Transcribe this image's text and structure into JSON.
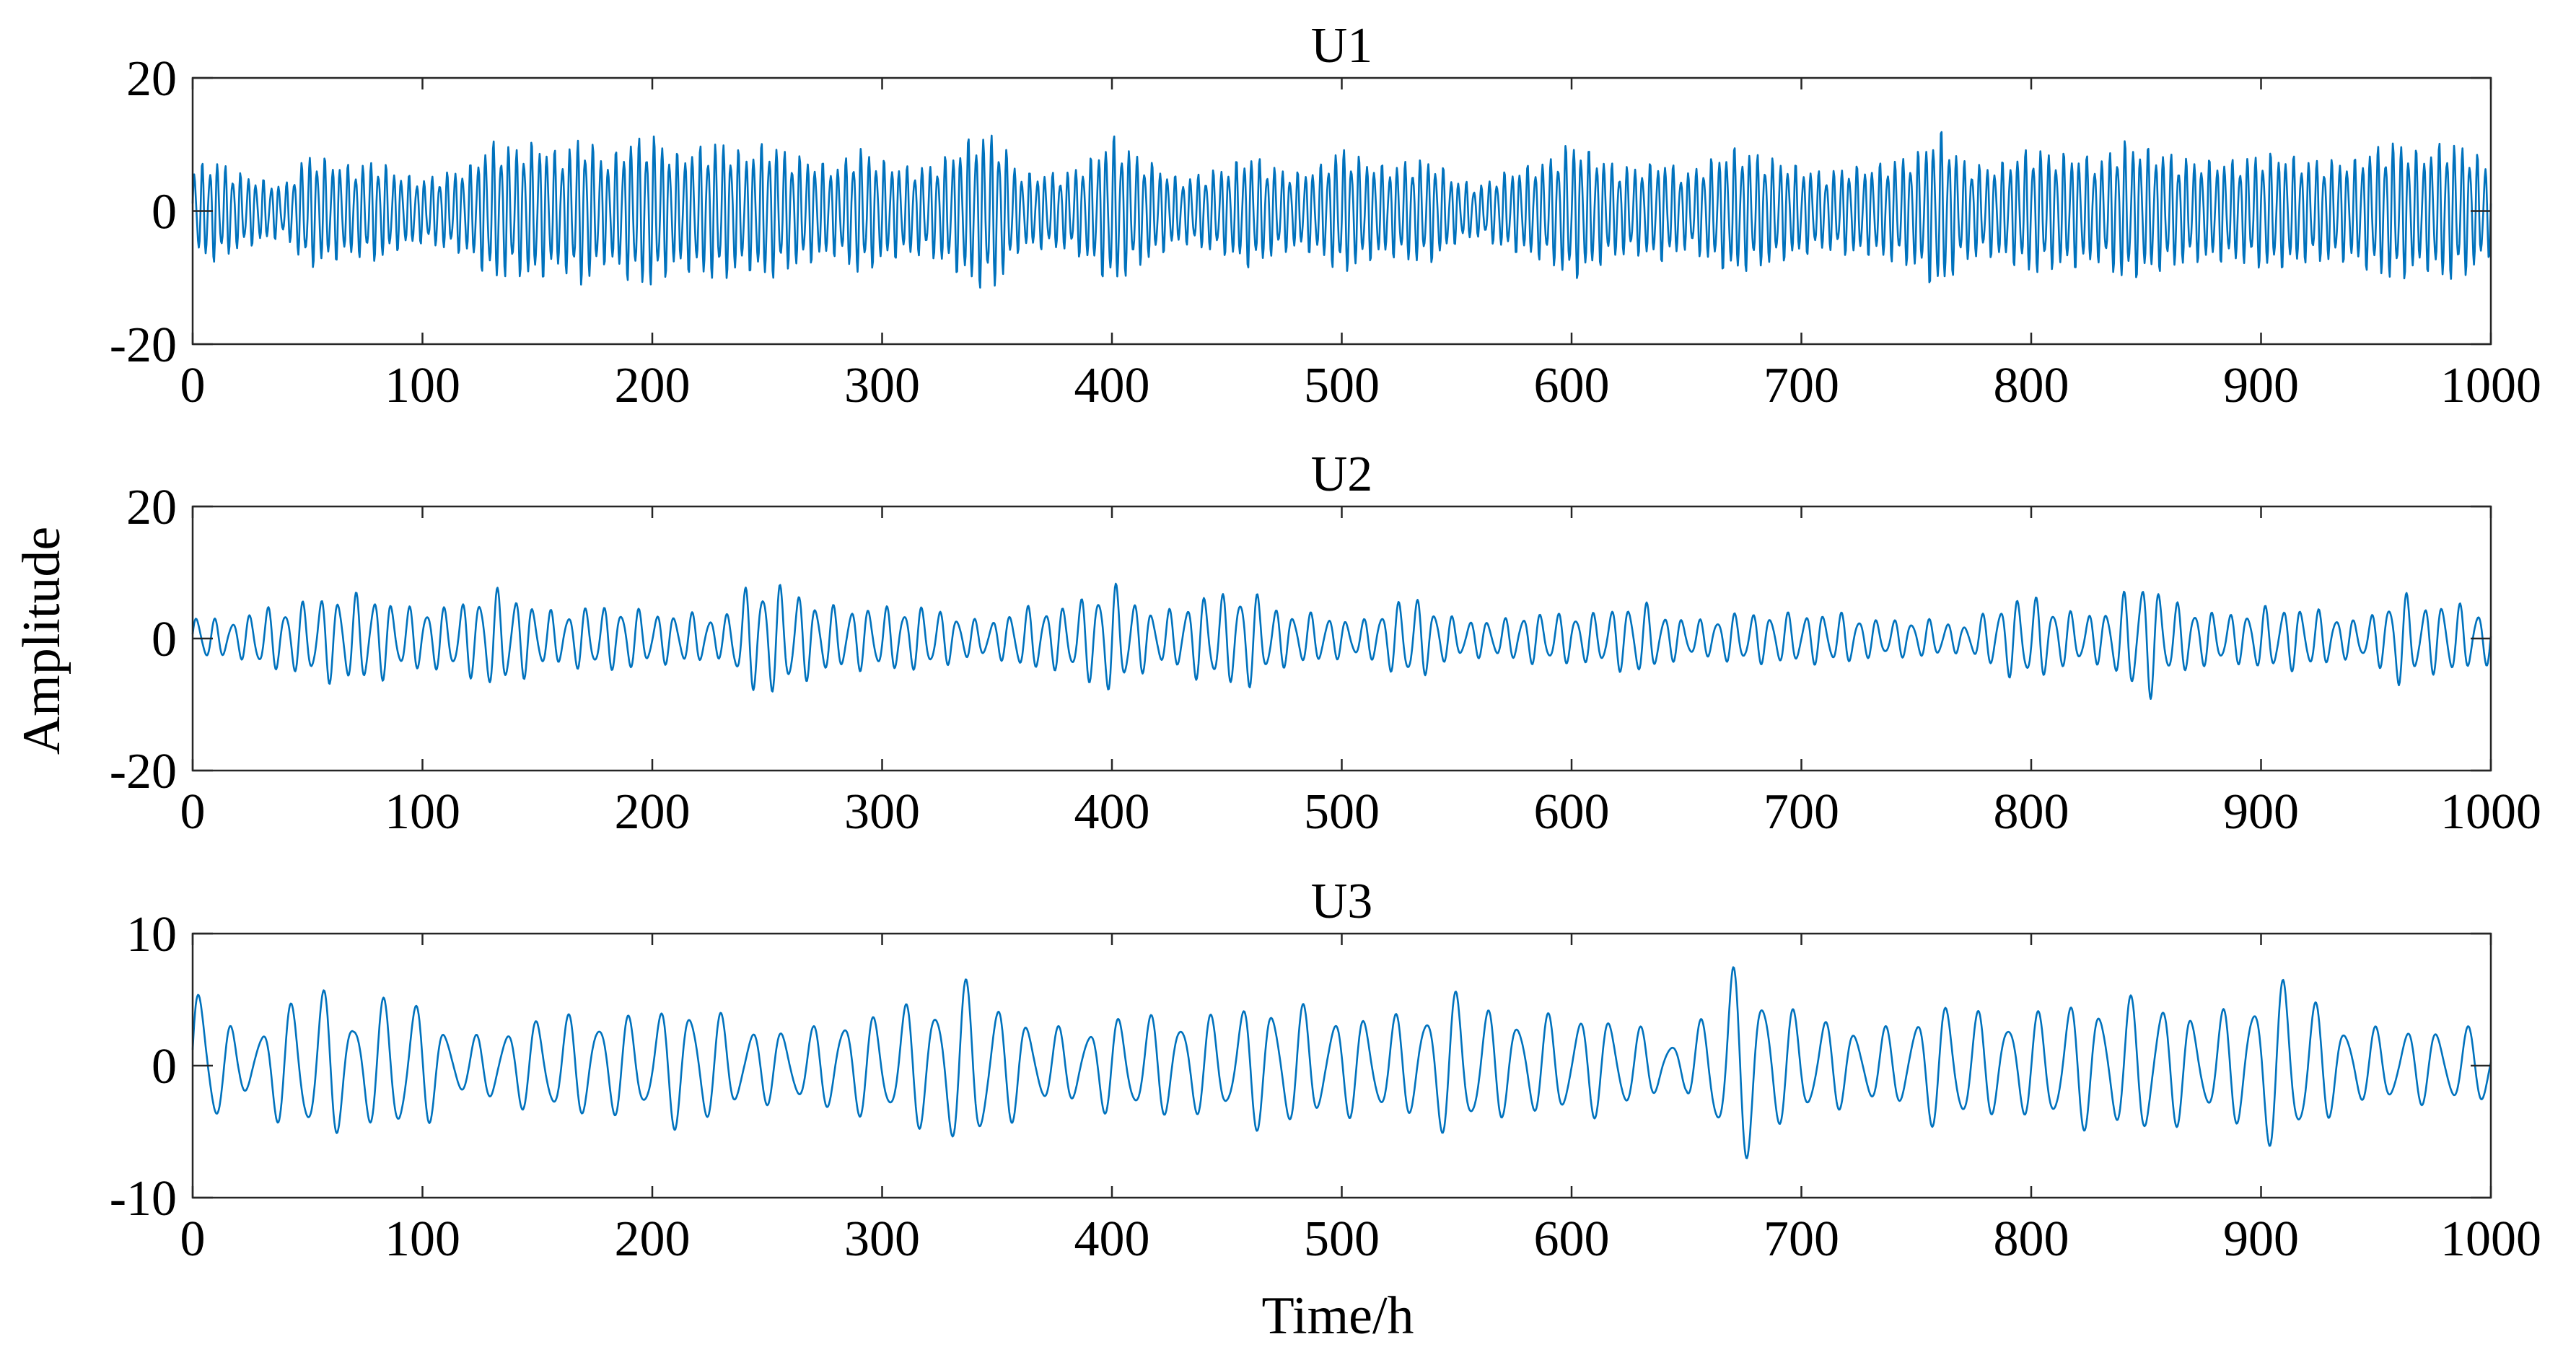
{
  "chart_data": {
    "type": "line",
    "xlabel": "Time/h",
    "ylabel": "Amplitude",
    "line_color": "#0072BD",
    "grid": false,
    "panels": [
      {
        "title": "U1",
        "xlim": [
          0,
          1000
        ],
        "ylim": [
          -20,
          20
        ],
        "xticks": [
          "0",
          "100",
          "200",
          "300",
          "400",
          "500",
          "600",
          "700",
          "800",
          "900",
          "1000"
        ],
        "yticks": [
          "20",
          "0",
          "-20"
        ],
        "x": [
          0,
          10,
          20,
          30,
          40,
          50,
          60,
          70,
          80,
          90,
          100,
          110,
          120,
          130,
          140,
          150,
          160,
          170,
          180,
          190,
          200,
          210,
          220,
          230,
          240,
          250,
          260,
          270,
          280,
          290,
          300,
          310,
          320,
          330,
          340,
          350,
          360,
          370,
          380,
          390,
          400,
          410,
          420,
          430,
          440,
          450,
          460,
          470,
          480,
          490,
          500,
          510,
          520,
          530,
          540,
          550,
          560,
          570,
          580,
          590,
          600,
          610,
          620,
          630,
          640,
          650,
          660,
          670,
          680,
          690,
          700,
          710,
          720,
          730,
          740,
          750,
          760,
          770,
          780,
          790,
          800,
          810,
          820,
          830,
          840,
          850,
          860,
          870,
          880,
          890,
          900,
          910,
          920,
          930,
          940,
          950,
          960,
          970,
          980,
          990,
          1000
        ],
        "envelope": [
          7,
          8,
          6,
          5,
          4,
          9,
          8,
          7,
          8,
          6,
          5,
          6,
          7,
          11,
          10,
          11,
          9,
          12,
          8,
          11,
          12,
          9,
          10,
          11,
          9,
          11,
          9,
          8,
          7,
          10,
          8,
          7,
          7,
          9,
          12,
          12,
          6,
          6,
          6,
          8,
          12,
          9,
          7,
          5,
          6,
          7,
          9,
          7,
          6,
          7,
          10,
          8,
          7,
          8,
          8,
          5,
          4,
          6,
          7,
          8,
          11,
          9,
          7,
          7,
          8,
          6,
          8,
          10,
          9,
          8,
          7,
          6,
          7,
          7,
          8,
          9,
          13,
          8,
          7,
          8,
          10,
          9,
          9,
          8,
          11,
          10,
          9,
          8,
          8,
          8,
          9,
          9,
          8,
          8,
          8,
          10,
          11,
          9,
          11,
          10,
          7
        ]
      },
      {
        "title": "U2",
        "xlim": [
          0,
          1000
        ],
        "ylim": [
          -20,
          20
        ],
        "xticks": [
          "0",
          "100",
          "200",
          "300",
          "400",
          "500",
          "600",
          "700",
          "800",
          "900",
          "1000"
        ],
        "yticks": [
          "20",
          "0",
          "-20"
        ],
        "x": [
          0,
          10,
          20,
          30,
          40,
          50,
          60,
          70,
          80,
          90,
          100,
          110,
          120,
          130,
          140,
          150,
          160,
          170,
          180,
          190,
          200,
          210,
          220,
          230,
          240,
          250,
          260,
          270,
          280,
          290,
          300,
          310,
          320,
          330,
          340,
          350,
          360,
          370,
          380,
          390,
          400,
          410,
          420,
          430,
          440,
          450,
          460,
          470,
          480,
          490,
          500,
          510,
          520,
          530,
          540,
          550,
          560,
          570,
          580,
          590,
          600,
          610,
          620,
          630,
          640,
          650,
          660,
          670,
          680,
          690,
          700,
          710,
          720,
          730,
          740,
          750,
          760,
          770,
          780,
          790,
          800,
          810,
          820,
          830,
          840,
          850,
          860,
          870,
          880,
          890,
          900,
          910,
          920,
          930,
          940,
          950,
          960,
          970,
          980,
          990,
          1000
        ],
        "envelope": [
          4,
          3,
          3,
          5,
          5,
          6,
          7,
          7,
          7,
          5,
          5,
          5,
          6,
          8,
          7,
          5,
          4,
          5,
          5,
          5,
          4,
          4,
          4,
          3,
          8,
          9,
          8,
          6,
          5,
          5,
          5,
          5,
          5,
          4,
          3,
          3,
          5,
          5,
          5,
          7,
          9,
          6,
          4,
          5,
          7,
          7,
          8,
          5,
          4,
          4,
          3,
          3,
          5,
          7,
          5,
          3,
          3,
          3,
          4,
          4,
          4,
          4,
          5,
          6,
          4,
          3,
          3,
          4,
          4,
          4,
          4,
          4,
          4,
          3,
          3,
          3,
          3,
          2,
          4,
          6,
          7,
          5,
          4,
          4,
          7,
          10,
          6,
          5,
          4,
          4,
          5,
          5,
          5,
          4,
          3,
          4,
          8,
          5,
          6,
          5,
          4
        ]
      },
      {
        "title": "U3",
        "xlim": [
          0,
          1000
        ],
        "ylim": [
          -10,
          10
        ],
        "xticks": [
          "0",
          "100",
          "200",
          "300",
          "400",
          "500",
          "600",
          "700",
          "800",
          "900",
          "1000"
        ],
        "yticks": [
          "10",
          "0",
          "-10"
        ],
        "x": [
          0,
          10,
          20,
          30,
          40,
          50,
          60,
          70,
          80,
          90,
          100,
          110,
          120,
          130,
          140,
          150,
          160,
          170,
          180,
          190,
          200,
          210,
          220,
          230,
          240,
          250,
          260,
          270,
          280,
          290,
          300,
          310,
          320,
          330,
          340,
          350,
          360,
          370,
          380,
          390,
          400,
          410,
          420,
          430,
          440,
          450,
          460,
          470,
          480,
          490,
          500,
          510,
          520,
          530,
          540,
          550,
          560,
          570,
          580,
          590,
          600,
          610,
          620,
          630,
          640,
          650,
          660,
          670,
          680,
          690,
          700,
          710,
          720,
          730,
          740,
          750,
          760,
          770,
          780,
          790,
          800,
          810,
          820,
          830,
          840,
          850,
          860,
          870,
          880,
          890,
          900,
          910,
          920,
          930,
          940,
          950,
          960,
          970,
          980,
          990,
          1000
        ],
        "envelope": [
          7.5,
          5,
          2,
          3,
          5,
          6,
          6,
          4,
          5,
          6,
          5,
          3,
          2,
          3,
          3,
          4,
          4,
          4,
          4,
          4,
          4,
          5,
          5,
          4,
          3,
          3,
          3,
          3,
          4,
          4,
          4,
          5,
          5,
          6,
          7,
          5,
          4,
          3,
          3,
          3,
          4,
          4,
          4,
          4,
          4,
          4,
          5,
          5,
          5,
          4,
          4,
          4,
          4,
          4,
          5,
          6,
          5,
          4,
          4,
          4,
          4,
          4,
          4,
          3,
          2,
          2,
          5,
          8,
          7,
          5,
          4,
          4,
          3,
          3,
          3,
          4,
          5,
          5,
          4,
          4,
          4,
          5,
          5,
          5,
          5,
          6,
          5,
          4,
          4,
          5,
          6,
          7,
          6,
          4,
          3,
          3,
          3,
          3,
          3,
          3,
          3
        ]
      }
    ]
  }
}
